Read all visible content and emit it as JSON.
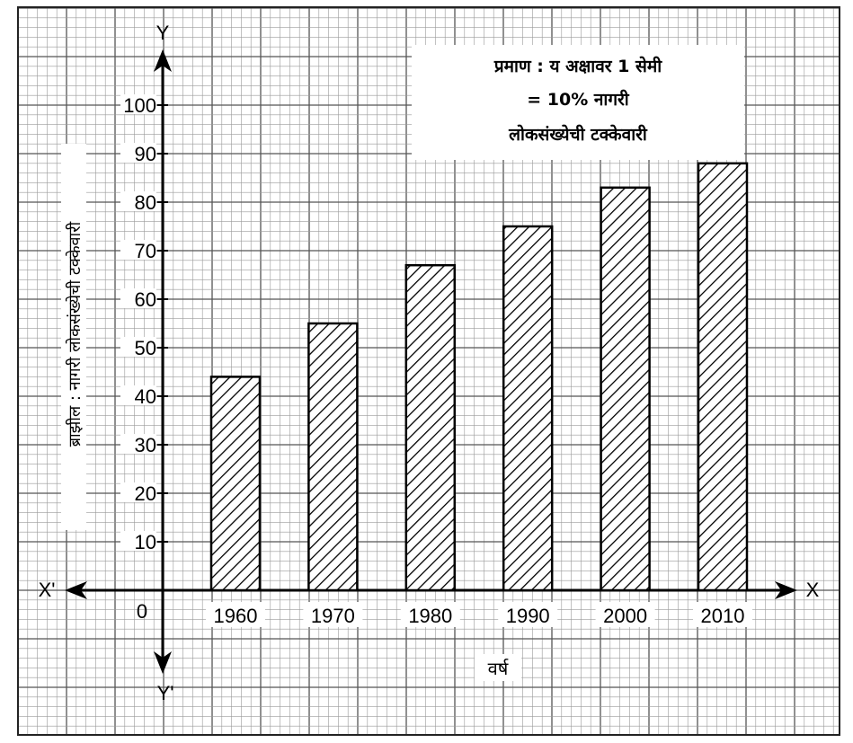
{
  "chart_data": {
    "type": "bar",
    "categories": [
      "1960",
      "1970",
      "1980",
      "1990",
      "2000",
      "2010"
    ],
    "values": [
      44,
      55,
      67,
      75,
      83,
      88
    ],
    "xlabel": "वर्ष",
    "ylabel": "ब्राझील : नागरी लोकसंख्येची टक्केवारी",
    "ylim": [
      0,
      100
    ],
    "yticks": [
      10,
      20,
      30,
      40,
      50,
      60,
      70,
      80,
      90,
      100
    ],
    "origin_label": "0",
    "grid": true,
    "bar_fill": "diagonal-hatch",
    "axis_names": {
      "y_pos": "Y",
      "y_neg": "Y'",
      "x_pos": "X",
      "x_neg": "X'"
    },
    "scale_box": {
      "line1": "प्रमाण : य अक्षावर 1 सेमी",
      "line2": "=  10% नागरी",
      "line3": "लोकसंख्येची टक्केवारी"
    }
  },
  "colors": {
    "grid_minor": "#9a9a9a",
    "grid_major": "#555555",
    "ink": "#000000"
  }
}
